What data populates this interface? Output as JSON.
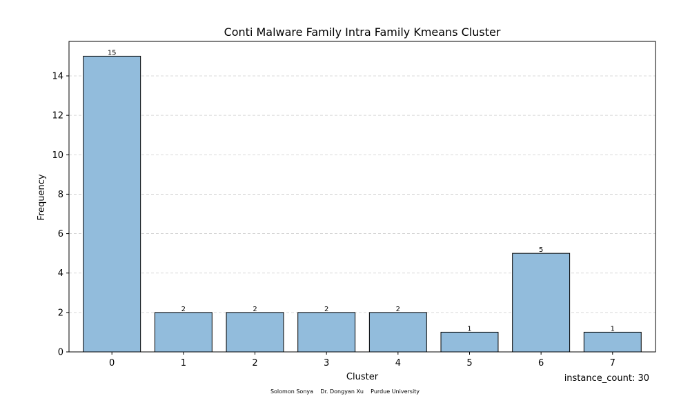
{
  "chart_data": {
    "type": "bar",
    "title": "Conti Malware Family Intra Family Kmeans Cluster",
    "xlabel": "Cluster",
    "ylabel": "Frequency",
    "categories": [
      "0",
      "1",
      "2",
      "3",
      "4",
      "5",
      "6",
      "7"
    ],
    "values": [
      15,
      2,
      2,
      2,
      2,
      1,
      5,
      1
    ],
    "ylim": [
      0,
      15.75
    ],
    "yticks": [
      0,
      2,
      4,
      6,
      8,
      10,
      12,
      14
    ],
    "grid": "y-dashed",
    "bar_color": "#92bcdc",
    "edge_color": "#000000",
    "grid_color": "#cccccc"
  },
  "annotation": "instance_count: 30",
  "footer": "Solomon Sonya    Dr. Dongyan Xu    Purdue University"
}
